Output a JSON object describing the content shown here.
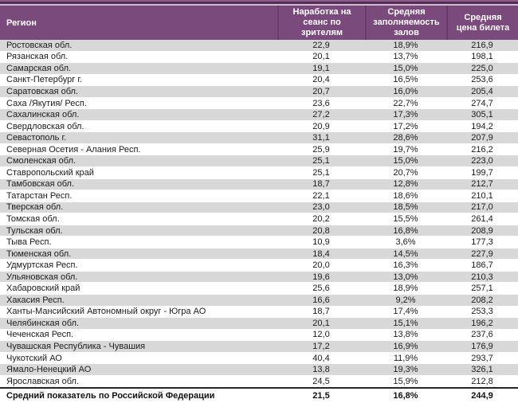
{
  "table": {
    "columns": [
      {
        "label": "Регион"
      },
      {
        "label": "Наработка на сеанс по зрителям"
      },
      {
        "label": "Средняя заполняемость залов"
      },
      {
        "label": "Средняя цена билета"
      }
    ],
    "rows": [
      [
        "Ростовская обл.",
        "22,9",
        "18,9%",
        "216,9"
      ],
      [
        "Рязанская обл.",
        "20,1",
        "13,7%",
        "198,1"
      ],
      [
        "Самарская обл.",
        "19,1",
        "15,0%",
        "225,0"
      ],
      [
        "Санкт-Петербург г.",
        "20,4",
        "16,5%",
        "253,6"
      ],
      [
        "Саратовская обл.",
        "20,7",
        "16,0%",
        "205,4"
      ],
      [
        "Саха /Якутия/ Респ.",
        "23,6",
        "22,7%",
        "274,7"
      ],
      [
        "Сахалинская обл.",
        "27,2",
        "17,3%",
        "305,1"
      ],
      [
        "Свердловская обл.",
        "20,9",
        "17,2%",
        "194,2"
      ],
      [
        "Севастополь г.",
        "31,1",
        "28,6%",
        "207,9"
      ],
      [
        "Северная Осетия - Алания Респ.",
        "25,9",
        "19,7%",
        "216,2"
      ],
      [
        "Смоленская обл.",
        "25,1",
        "15,0%",
        "223,0"
      ],
      [
        "Ставропольский край",
        "25,1",
        "20,7%",
        "199,7"
      ],
      [
        "Тамбовская обл.",
        "18,7",
        "12,8%",
        "212,7"
      ],
      [
        "Татарстан Респ.",
        "22,1",
        "18,6%",
        "210,1"
      ],
      [
        "Тверская обл.",
        "23,0",
        "18,5%",
        "217,0"
      ],
      [
        "Томская обл.",
        "20,2",
        "15,5%",
        "261,4"
      ],
      [
        "Тульская обл.",
        "20,8",
        "16,8%",
        "208,9"
      ],
      [
        "Тыва Респ.",
        "10,9",
        "3,6%",
        "177,3"
      ],
      [
        "Тюменская обл.",
        "18,4",
        "14,5%",
        "227,9"
      ],
      [
        "Удмуртская Респ.",
        "20,0",
        "16,3%",
        "186,7"
      ],
      [
        "Ульяновская обл.",
        "19,6",
        "13,0%",
        "210,3"
      ],
      [
        "Хабаровский край",
        "25,6",
        "18,9%",
        "257,1"
      ],
      [
        "Хакасия Респ.",
        "16,6",
        "9,2%",
        "208,2"
      ],
      [
        "Ханты-Мансийский Автономный округ - Югра АО",
        "18,7",
        "17,4%",
        "253,3"
      ],
      [
        "Челябинская обл.",
        "20,1",
        "15,1%",
        "196,2"
      ],
      [
        "Чеченская Респ.",
        "12,0",
        "13,8%",
        "237,6"
      ],
      [
        "Чувашская Республика - Чувашия",
        "17,2",
        "16,9%",
        "176,9"
      ],
      [
        "Чукотский АО",
        "40,4",
        "11,9%",
        "293,7"
      ],
      [
        "Ямало-Ненецкий АО",
        "13,8",
        "19,3%",
        "326,1"
      ],
      [
        "Ярославская обл.",
        "24,5",
        "15,9%",
        "212,8"
      ]
    ],
    "footer": [
      "Средний показатель по Российской Федерации",
      "21,5",
      "16,8%",
      "244,9"
    ]
  },
  "colors": {
    "header_bg": "#7b4a7c",
    "header_divider": "#6a3a6b",
    "top_bar_dark": "#572a58",
    "top_bar_mid": "#8a5e8b",
    "top_bar_light": "#cdbdce",
    "row_stripe": "#d8d8d8",
    "summary_border": "#262626",
    "body_text": "#1c1c1c",
    "header_text": "#ffffff"
  }
}
